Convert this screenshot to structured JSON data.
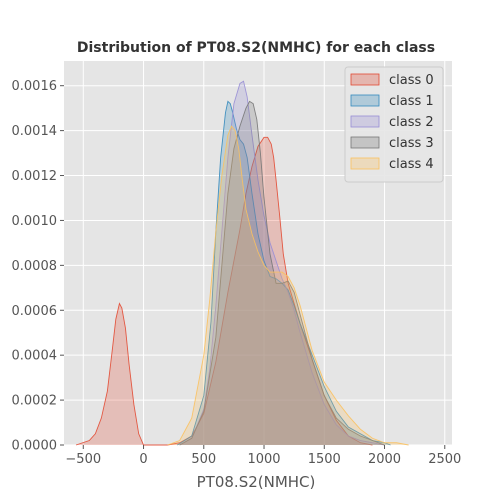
{
  "chart_data": {
    "type": "area",
    "title": "Distribution of PT08.S2(NMHC) for each class",
    "xlabel": "PT08.S2(NMHC)",
    "ylabel": "",
    "xlim": [
      -660,
      2560
    ],
    "ylim": [
      0,
      0.00171
    ],
    "xticks": [
      -500,
      0,
      500,
      1000,
      1500,
      2000,
      2500
    ],
    "xtick_labels": [
      "−500",
      "0",
      "500",
      "1000",
      "1500",
      "2000",
      "2500"
    ],
    "yticks": [
      0,
      0.0002,
      0.0004,
      0.0006,
      0.0008,
      0.001,
      0.0012,
      0.0014,
      0.0016
    ],
    "ytick_labels": [
      "0.0000",
      "0.0002",
      "0.0004",
      "0.0006",
      "0.0008",
      "0.0010",
      "0.0012",
      "0.0014",
      "0.0016"
    ],
    "grid": true,
    "legend_position": "top-right",
    "colors": {
      "background": "#e5e5e5",
      "grid": "#ffffff"
    },
    "series": [
      {
        "name": "class 0",
        "color": "#e24a33",
        "x": [
          -560,
          -450,
          -400,
          -350,
          -300,
          -260,
          -230,
          -200,
          -180,
          -150,
          -120,
          -80,
          -40,
          0,
          100,
          200,
          300,
          400,
          500,
          600,
          700,
          800,
          850,
          900,
          950,
          1000,
          1030,
          1060,
          1080,
          1100,
          1130,
          1160,
          1200,
          1250,
          1300,
          1400,
          1500,
          1600,
          1700,
          1800,
          1900
        ],
        "y": [
          0,
          2e-05,
          5e-05,
          0.00012,
          0.00024,
          0.00042,
          0.00056,
          0.00063,
          0.00061,
          0.00052,
          0.00036,
          0.00018,
          5e-05,
          0,
          0,
          0,
          1e-05,
          4e-05,
          0.00014,
          0.00037,
          0.00068,
          0.00096,
          0.00112,
          0.00124,
          0.00133,
          0.00137,
          0.00137,
          0.00134,
          0.00128,
          0.00118,
          0.00102,
          0.00085,
          0.00072,
          0.00063,
          0.00054,
          0.00038,
          0.00022,
          0.00011,
          4e-05,
          1e-05,
          0
        ]
      },
      {
        "name": "class 1",
        "color": "#348abd",
        "x": [
          280,
          400,
          500,
          560,
          600,
          640,
          680,
          700,
          720,
          740,
          770,
          800,
          830,
          860,
          900,
          950,
          1000,
          1050,
          1100,
          1150,
          1200,
          1250,
          1300,
          1400,
          1500,
          1600,
          1700,
          1800,
          1900,
          2000,
          2050
        ],
        "y": [
          0,
          4e-05,
          0.00022,
          0.00055,
          0.00095,
          0.00128,
          0.00148,
          0.00153,
          0.00152,
          0.00148,
          0.00141,
          0.00136,
          0.00134,
          0.00128,
          0.00112,
          0.00094,
          0.00082,
          0.00075,
          0.00074,
          0.00072,
          0.00069,
          0.00062,
          0.00054,
          0.0004,
          0.00026,
          0.00015,
          8e-05,
          5e-05,
          2e-05,
          1e-05,
          0
        ]
      },
      {
        "name": "class 2",
        "color": "#988ed5",
        "x": [
          300,
          400,
          500,
          550,
          600,
          650,
          700,
          750,
          800,
          830,
          860,
          900,
          950,
          1000,
          1050,
          1100,
          1150,
          1200,
          1250,
          1300,
          1400,
          1500,
          1600,
          1700,
          1800,
          1900,
          2000
        ],
        "y": [
          0,
          3e-05,
          0.00016,
          0.00034,
          0.00062,
          0.00095,
          0.00128,
          0.00152,
          0.00161,
          0.00162,
          0.00155,
          0.00138,
          0.00118,
          0.00102,
          0.0009,
          0.00082,
          0.00074,
          0.00068,
          0.0006,
          0.0005,
          0.00032,
          0.00018,
          9e-05,
          4e-05,
          2e-05,
          1e-05,
          0
        ]
      },
      {
        "name": "class 3",
        "color": "#777777",
        "x": [
          300,
          400,
          500,
          600,
          650,
          700,
          750,
          800,
          850,
          880,
          910,
          940,
          970,
          1000,
          1050,
          1100,
          1150,
          1200,
          1250,
          1300,
          1400,
          1500,
          1600,
          1700,
          1800,
          1900,
          2000
        ],
        "y": [
          0,
          3e-05,
          0.00015,
          0.00048,
          0.0008,
          0.00112,
          0.00132,
          0.00142,
          0.0015,
          0.00153,
          0.00152,
          0.00145,
          0.0013,
          0.0011,
          0.00085,
          0.00072,
          0.00072,
          0.00073,
          0.00068,
          0.00058,
          0.00038,
          0.00022,
          0.00012,
          7e-05,
          4e-05,
          2e-05,
          0
        ]
      },
      {
        "name": "class 4",
        "color": "#fbc15e",
        "x": [
          200,
          300,
          400,
          500,
          550,
          600,
          650,
          700,
          730,
          760,
          790,
          820,
          850,
          900,
          950,
          1000,
          1050,
          1100,
          1150,
          1200,
          1250,
          1300,
          1400,
          1500,
          1600,
          1700,
          1800,
          1900,
          2000,
          2100,
          2200
        ],
        "y": [
          0,
          2e-05,
          0.00012,
          0.0004,
          0.00065,
          0.00095,
          0.0012,
          0.00138,
          0.00142,
          0.0014,
          0.00132,
          0.00118,
          0.00105,
          0.00094,
          0.00086,
          0.0008,
          0.00077,
          0.00077,
          0.00077,
          0.00075,
          0.0007,
          0.00062,
          0.00042,
          0.00028,
          0.0002,
          0.00013,
          7e-05,
          3e-05,
          1e-05,
          1e-05,
          0
        ]
      }
    ]
  }
}
